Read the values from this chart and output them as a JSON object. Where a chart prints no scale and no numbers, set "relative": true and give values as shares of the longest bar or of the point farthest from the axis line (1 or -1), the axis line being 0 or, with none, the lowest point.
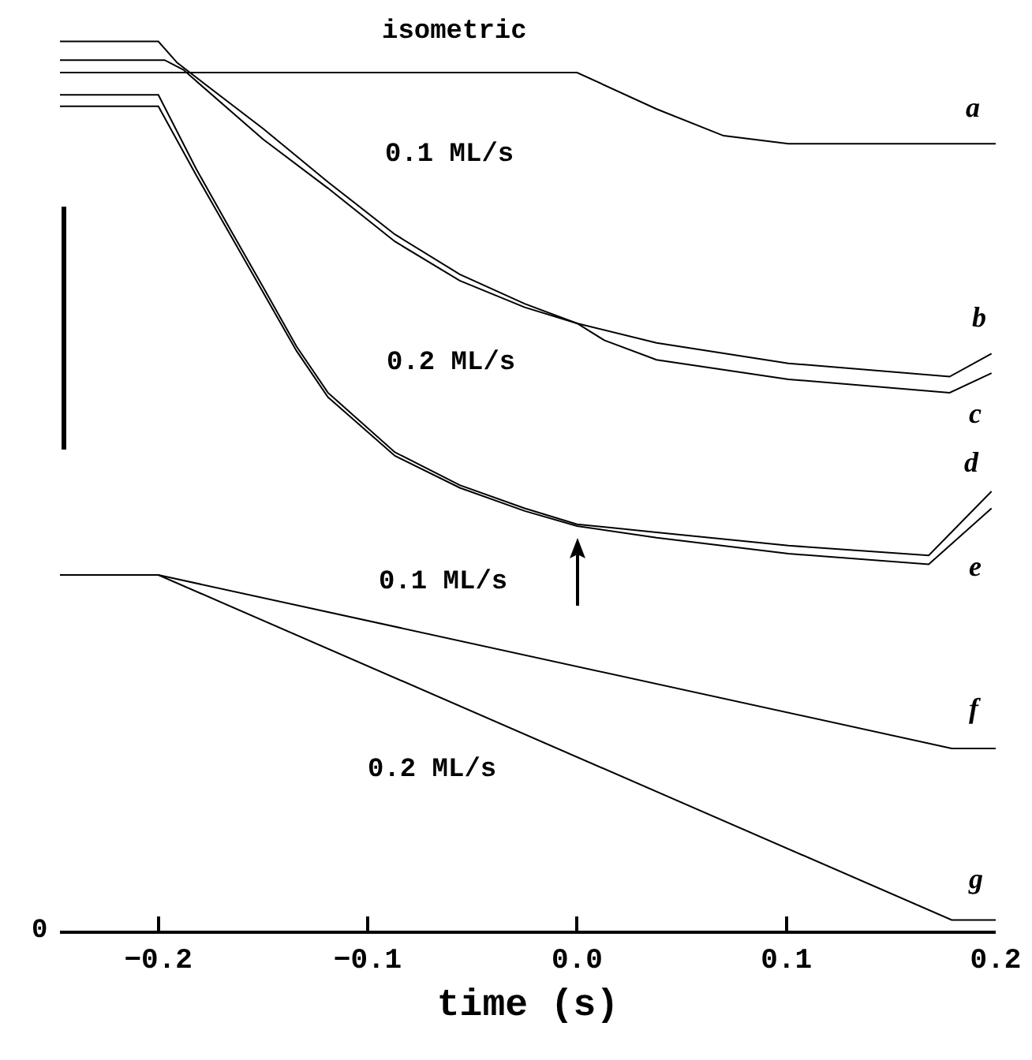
{
  "chart_data": {
    "type": "line",
    "relative": true,
    "xlabel": "time (s)",
    "xlim": [
      -0.247,
      0.2
    ],
    "xticks": [
      {
        "value": -0.2,
        "label": "−0.2"
      },
      {
        "value": -0.1,
        "label": "−0.1"
      },
      {
        "value": 0,
        "label": "0.0"
      },
      0.1,
      0.2
    ],
    "tick_labels": "x",
    "grid": false,
    "marker": "none",
    "line_style": "solid",
    "series": [
      {
        "color": "#000000",
        "x": [
          -0.247,
          0.0,
          0.038,
          0.07,
          0.101,
          0.2
        ],
        "values": [
          0.965,
          0.965,
          0.924,
          0.894,
          0.885,
          0.885
        ]
      },
      {
        "color": "#000000",
        "x": [
          -0.247,
          -0.2,
          -0.191,
          -0.15,
          -0.119,
          -0.087,
          -0.056,
          -0.025,
          0.0,
          0.038,
          0.101,
          0.178,
          0.198
        ],
        "values": [
          1.0,
          1.0,
          0.976,
          0.902,
          0.842,
          0.783,
          0.738,
          0.705,
          0.683,
          0.661,
          0.638,
          0.623,
          0.649
        ]
      },
      {
        "color": "#000000",
        "x": [
          -0.247,
          -0.197,
          -0.188,
          -0.15,
          -0.119,
          -0.087,
          -0.056,
          -0.025,
          0.0,
          0.013,
          0.038,
          0.101,
          0.178,
          0.198
        ],
        "values": [
          0.979,
          0.979,
          0.968,
          0.89,
          0.835,
          0.775,
          0.731,
          0.701,
          0.683,
          0.664,
          0.642,
          0.62,
          0.605,
          0.627
        ]
      },
      {
        "color": "#000000",
        "x": [
          -0.247,
          -0.2,
          -0.182,
          -0.166,
          -0.15,
          -0.134,
          -0.119,
          -0.087,
          -0.056,
          -0.025,
          0.0,
          0.038,
          0.101,
          0.168,
          0.198
        ],
        "values": [
          0.94,
          0.94,
          0.857,
          0.79,
          0.724,
          0.657,
          0.605,
          0.538,
          0.501,
          0.475,
          0.457,
          0.448,
          0.433,
          0.422,
          0.494
        ]
      },
      {
        "color": "#000000",
        "x": [
          -0.247,
          -0.2,
          -0.182,
          -0.166,
          -0.15,
          -0.134,
          -0.119,
          -0.087,
          -0.056,
          -0.025,
          0.0,
          0.038,
          0.101,
          0.168,
          0.198
        ],
        "values": [
          0.927,
          0.927,
          0.85,
          0.784,
          0.718,
          0.652,
          0.6,
          0.534,
          0.498,
          0.472,
          0.455,
          0.442,
          0.424,
          0.412,
          0.475
        ]
      },
      {
        "color": "#000000",
        "x": [
          -0.247,
          -0.2,
          0.179,
          0.2
        ],
        "values": [
          0.4,
          0.4,
          0.205,
          0.205
        ]
      },
      {
        "color": "#000000",
        "x": [
          -0.247,
          -0.2,
          0.179,
          0.2
        ],
        "values": [
          0.4,
          0.4,
          0.012,
          0.012
        ]
      }
    ],
    "annotations": [
      "isometric",
      "0.1 ML/s",
      "0.2 ML/s",
      "0.1 ML/s",
      "0.2 ML/s",
      "a",
      "b",
      "c",
      "d",
      "e",
      "f",
      "g",
      "0"
    ]
  }
}
